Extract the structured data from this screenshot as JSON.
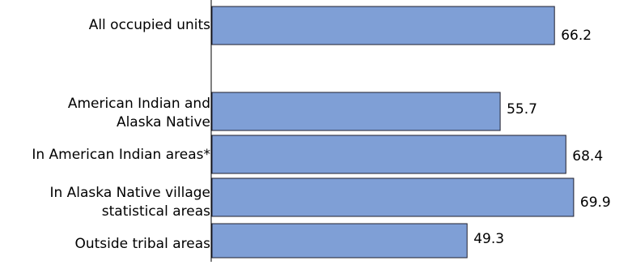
{
  "chart_data": {
    "type": "bar",
    "orientation": "horizontal",
    "categories": [
      "All occupied units",
      "American Indian and\nAlaska Native",
      "In American Indian areas*",
      "In Alaska Native village\nstatistical areas",
      "Outside tribal areas"
    ],
    "values": [
      66.2,
      55.7,
      68.4,
      69.9,
      49.3
    ],
    "value_labels": [
      "66.2",
      "55.7",
      "68.4",
      "69.9",
      "49.3"
    ],
    "xlim": [
      0,
      100
    ],
    "grid": false,
    "legend": "none",
    "bar_color": "#7f9fd6",
    "bar_edge_color": "#1f1f2e"
  }
}
